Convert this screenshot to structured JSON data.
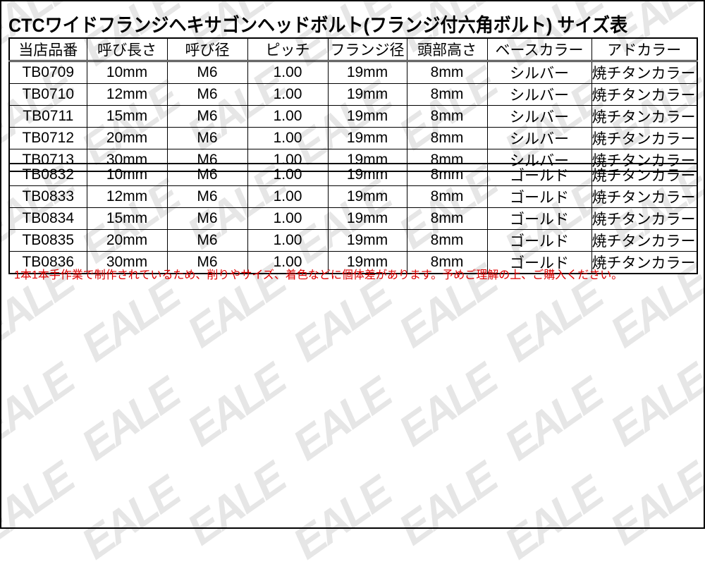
{
  "title": "CTCワイドフランジヘキサゴンヘッドボルト(フランジ付六角ボルト) サイズ表",
  "headers": [
    "当店品番",
    "呼び長さ",
    "呼び径",
    "ピッチ",
    "フランジ径",
    "頭部高さ",
    "ベースカラー",
    "アドカラー"
  ],
  "group1": [
    [
      "TB0709",
      "10mm",
      "M6",
      "1.00",
      "19mm",
      "8mm",
      "シルバー",
      "焼チタンカラー"
    ],
    [
      "TB0710",
      "12mm",
      "M6",
      "1.00",
      "19mm",
      "8mm",
      "シルバー",
      "焼チタンカラー"
    ],
    [
      "TB0711",
      "15mm",
      "M6",
      "1.00",
      "19mm",
      "8mm",
      "シルバー",
      "焼チタンカラー"
    ],
    [
      "TB0712",
      "20mm",
      "M6",
      "1.00",
      "19mm",
      "8mm",
      "シルバー",
      "焼チタンカラー"
    ],
    [
      "TB0713",
      "30mm",
      "M6",
      "1.00",
      "19mm",
      "8mm",
      "シルバー",
      "焼チタンカラー"
    ]
  ],
  "group2": [
    [
      "TB0832",
      "10mm",
      "M6",
      "1.00",
      "19mm",
      "8mm",
      "ゴールド",
      "焼チタンカラー"
    ],
    [
      "TB0833",
      "12mm",
      "M6",
      "1.00",
      "19mm",
      "8mm",
      "ゴールド",
      "焼チタンカラー"
    ],
    [
      "TB0834",
      "15mm",
      "M6",
      "1.00",
      "19mm",
      "8mm",
      "ゴールド",
      "焼チタンカラー"
    ],
    [
      "TB0835",
      "20mm",
      "M6",
      "1.00",
      "19mm",
      "8mm",
      "ゴールド",
      "焼チタンカラー"
    ],
    [
      "TB0836",
      "30mm",
      "M6",
      "1.00",
      "19mm",
      "8mm",
      "ゴールド",
      "焼チタンカラー"
    ]
  ],
  "note": "1本1本手作業で制作されているため、削りやサイズ、着色などに個体差があります。予めご理解の上、ご購入ください。",
  "watermark": "EALE",
  "colors": {
    "note": "#e00000",
    "watermark": "#e6e6e6"
  }
}
